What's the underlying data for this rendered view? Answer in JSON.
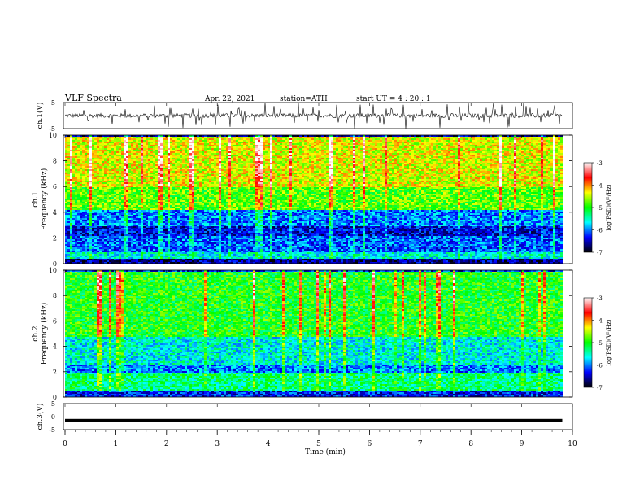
{
  "header": {
    "title": "VLF  Spectra",
    "date": "Apr. 22, 2021",
    "station": "station=ATH",
    "start_ut": "start  UT  =   4  : 20 : 1"
  },
  "panels": {
    "ch1_wave": {
      "ylabel": "ch.1(V)",
      "ticks": [
        "5",
        "-5"
      ]
    },
    "ch1_spec": {
      "ylabel": "ch.1\nFrequency  (kHz)",
      "ylabel_top": "ch.1",
      "ylabel_bottom": "Frequency  (kHz)",
      "ticks": [
        "10",
        "8",
        "6",
        "4",
        "2",
        "0"
      ]
    },
    "ch2_spec": {
      "ylabel_top": "ch.2",
      "ylabel_bottom": "Frequency  (kHz)",
      "ticks": [
        "10",
        "8",
        "6",
        "4",
        "2",
        "0"
      ]
    },
    "ch3_wave": {
      "ylabel": "ch.3(V)",
      "ticks": [
        "5",
        "0",
        "-5"
      ]
    }
  },
  "colorbar": {
    "label": "log(PSD)(V²/Hz)",
    "ticks": [
      "-3",
      "-4",
      "-5",
      "-6",
      "-7"
    ],
    "colors": [
      "#ffffff",
      "#ff0000",
      "#ffff00",
      "#00ff00",
      "#00ffff",
      "#0000ff",
      "#000000"
    ]
  },
  "chart_data": {
    "type": "heatmap",
    "title": "VLF  Spectra",
    "xlabel": "Time  (min)",
    "xlim": [
      0,
      10
    ],
    "x_ticks": [
      "0",
      "1",
      "2",
      "3",
      "4",
      "5",
      "6",
      "7",
      "8",
      "9",
      "10"
    ],
    "ch1_ylim": [
      -5,
      5
    ],
    "spectrogram_ylim_khz": [
      0,
      10
    ],
    "ch3_ylim": [
      -5,
      5
    ],
    "data_end_min": 9.8,
    "ch3_level_v": -1.5,
    "colorbar_range": [
      -7,
      -3
    ],
    "ch1_bands": [
      {
        "f0": 0.0,
        "f1": 0.4,
        "level": -6.6
      },
      {
        "f0": 0.4,
        "f1": 0.9,
        "level": -5.6
      },
      {
        "f0": 0.9,
        "f1": 2.2,
        "level": -6.1
      },
      {
        "f0": 2.2,
        "f1": 3.0,
        "level": -6.4
      },
      {
        "f0": 3.0,
        "f1": 4.3,
        "level": -6.0
      },
      {
        "f0": 4.3,
        "f1": 6.0,
        "level": -4.8
      },
      {
        "f0": 6.0,
        "f1": 10.0,
        "level": -4.4
      }
    ],
    "ch2_bands": [
      {
        "f0": 0.0,
        "f1": 0.6,
        "level": -6.3
      },
      {
        "f0": 0.6,
        "f1": 2.0,
        "level": -5.3
      },
      {
        "f0": 2.0,
        "f1": 2.6,
        "level": -6.0
      },
      {
        "f0": 2.6,
        "f1": 4.8,
        "level": -5.6
      },
      {
        "f0": 4.8,
        "f1": 10.0,
        "level": -5.0
      }
    ]
  }
}
